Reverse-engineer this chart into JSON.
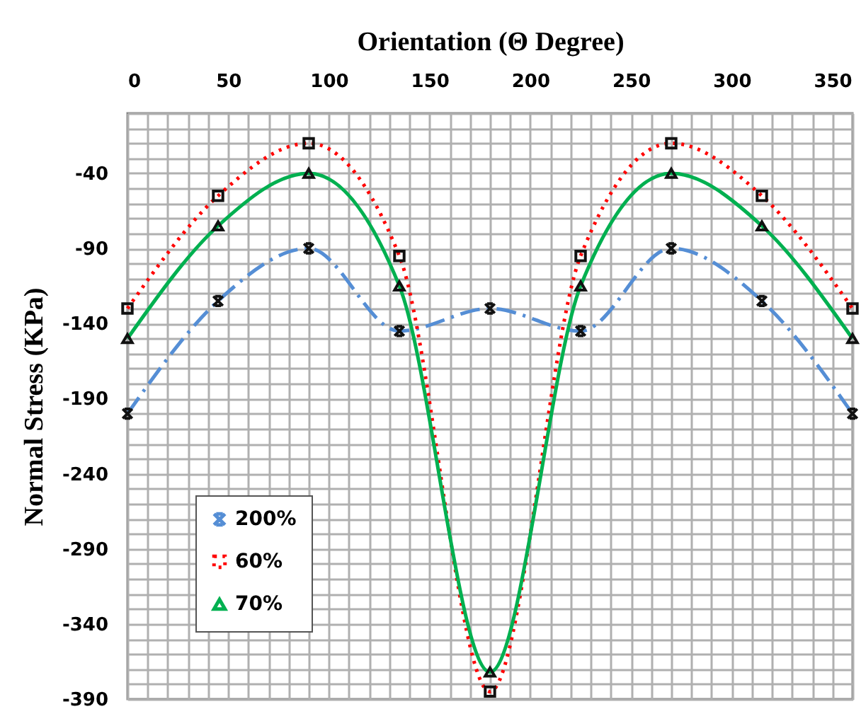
{
  "chart_data": {
    "type": "line",
    "xlabel": "Orientation (Θ Degree)",
    "ylabel": "Normal Stress (KPa)",
    "x": [
      0,
      45,
      90,
      135,
      180,
      225,
      270,
      315,
      360
    ],
    "series": [
      {
        "name": "200%",
        "color": "#558ed5",
        "values": [
          -200,
          -125,
          -90,
          -145,
          -130,
          -145,
          -90,
          -125,
          -200
        ],
        "marker": "cross",
        "line_style": "dashed"
      },
      {
        "name": "60%",
        "color": "#ff0000",
        "values": [
          -130,
          -55,
          -20,
          -95,
          -385,
          -95,
          -20,
          -55,
          -130
        ],
        "marker": "square",
        "line_style": "dotted"
      },
      {
        "name": "70%",
        "color": "#00b050",
        "values": [
          -150,
          -75,
          -40,
          -115,
          -372,
          -115,
          -40,
          -75,
          -150
        ],
        "marker": "triangle",
        "line_style": "solid"
      }
    ],
    "xlim": [
      0,
      360
    ],
    "xticks": [
      0,
      {
        "value": 10,
        "label": null
      },
      {
        "value": 20,
        "label": null
      },
      {
        "value": 30,
        "label": null
      },
      {
        "value": 40,
        "label": null
      },
      50,
      {
        "value": 60,
        "label": null
      },
      {
        "value": 70,
        "label": null
      },
      {
        "value": 80,
        "label": null
      },
      {
        "value": 90,
        "label": null
      },
      100,
      {
        "value": 110,
        "label": null
      },
      {
        "value": 120,
        "label": null
      },
      {
        "value": 130,
        "label": null
      },
      {
        "value": 140,
        "label": null
      },
      150,
      {
        "value": 160,
        "label": null
      },
      {
        "value": 170,
        "label": null
      },
      {
        "value": 180,
        "label": null
      },
      {
        "value": 190,
        "label": null
      },
      200,
      {
        "value": 210,
        "label": null
      },
      {
        "value": 220,
        "label": null
      },
      {
        "value": 230,
        "label": null
      },
      {
        "value": 240,
        "label": null
      },
      250,
      {
        "value": 260,
        "label": null
      },
      {
        "value": 270,
        "label": null
      },
      {
        "value": 280,
        "label": null
      },
      {
        "value": 290,
        "label": null
      },
      300,
      {
        "value": 310,
        "label": null
      },
      {
        "value": 320,
        "label": null
      },
      {
        "value": 330,
        "label": null
      },
      {
        "value": 340,
        "label": null
      },
      350,
      {
        "value": 360,
        "label": null
      }
    ],
    "ylim": [
      -390,
      0
    ],
    "yticks": [
      -390,
      {
        "value": -380,
        "label": null
      },
      {
        "value": -370,
        "label": null
      },
      {
        "value": -360,
        "label": null
      },
      {
        "value": -350,
        "label": null
      },
      -340,
      {
        "value": -330,
        "label": null
      },
      {
        "value": -320,
        "label": null
      },
      {
        "value": -310,
        "label": null
      },
      {
        "value": -300,
        "label": null
      },
      -290,
      {
        "value": -280,
        "label": null
      },
      {
        "value": -270,
        "label": null
      },
      {
        "value": -260,
        "label": null
      },
      {
        "value": -250,
        "label": null
      },
      -240,
      {
        "value": -230,
        "label": null
      },
      {
        "value": -220,
        "label": null
      },
      {
        "value": -210,
        "label": null
      },
      {
        "value": -200,
        "label": null
      },
      -190,
      {
        "value": -180,
        "label": null
      },
      {
        "value": -170,
        "label": null
      },
      {
        "value": -160,
        "label": null
      },
      {
        "value": -150,
        "label": null
      },
      -140,
      {
        "value": -130,
        "label": null
      },
      {
        "value": -120,
        "label": null
      },
      {
        "value": -110,
        "label": null
      },
      {
        "value": -100,
        "label": null
      },
      -90,
      {
        "value": -80,
        "label": null
      },
      {
        "value": -70,
        "label": null
      },
      {
        "value": -60,
        "label": null
      },
      {
        "value": -50,
        "label": null
      },
      -40,
      {
        "value": -30,
        "label": null
      },
      {
        "value": -20,
        "label": null
      },
      {
        "value": -10,
        "label": null
      },
      {
        "value": 0,
        "label": null
      }
    ],
    "grid": true,
    "legend": "bottom left"
  }
}
